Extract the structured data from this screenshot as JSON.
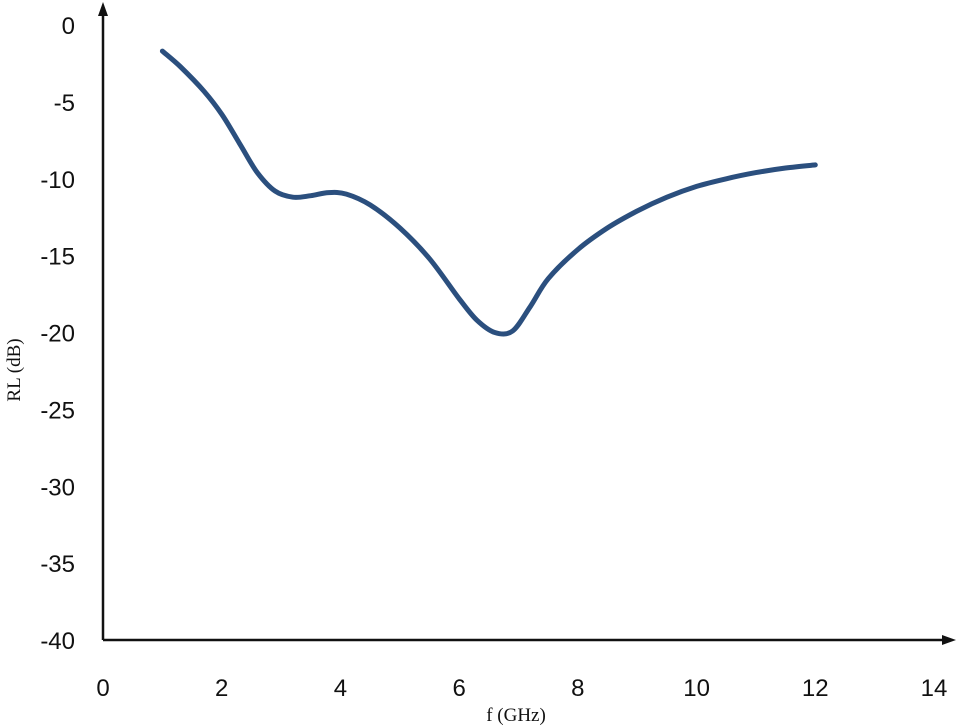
{
  "chart_data": {
    "type": "line",
    "title": "",
    "xlabel": "f (GHz)",
    "ylabel": "RL (dB)",
    "xlim": [
      0,
      14
    ],
    "ylim": [
      -40,
      0
    ],
    "x_ticks": [
      "0",
      "2",
      "4",
      "6",
      "8",
      "10",
      "12",
      "14"
    ],
    "y_ticks": [
      "0",
      "-5",
      "-10",
      "-15",
      "-20",
      "-25",
      "-30",
      "-35",
      "-40"
    ],
    "grid": false,
    "legend": "none",
    "line_color": "#2b4f7e",
    "series": [
      {
        "x": [
          1.0,
          1.3,
          1.7,
          2.0,
          2.3,
          2.6,
          2.9,
          3.2,
          3.5,
          3.8,
          4.1,
          4.5,
          5.0,
          5.5,
          6.0,
          6.3,
          6.6,
          6.9,
          7.2,
          7.5,
          8.0,
          8.5,
          9.0,
          9.5,
          10.0,
          10.5,
          11.0,
          11.5,
          12.0
        ],
        "y": [
          -1.7,
          -2.7,
          -4.3,
          -5.8,
          -7.7,
          -9.6,
          -10.8,
          -11.2,
          -11.1,
          -10.9,
          -11.0,
          -11.7,
          -13.2,
          -15.2,
          -17.8,
          -19.2,
          -20.0,
          -19.9,
          -18.3,
          -16.5,
          -14.6,
          -13.2,
          -12.1,
          -11.2,
          -10.5,
          -10.0,
          -9.6,
          -9.3,
          -9.1
        ]
      }
    ]
  }
}
